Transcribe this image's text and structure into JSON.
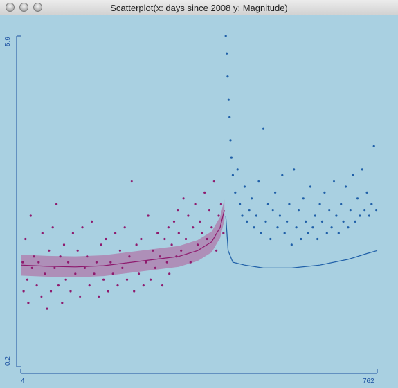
{
  "window": {
    "title": "Scatterplot(x: days since 2008 y: Magnitude)"
  },
  "chart_data": {
    "type": "scatter",
    "title": "Scatterplot(x: days since 2008 y: Magnitude)",
    "x_label": "days since 2008",
    "y_label": "Magnitude",
    "xlim": [
      4,
      762
    ],
    "ylim": [
      0.2,
      5.9
    ],
    "x_tick_labels": [
      "4",
      "762"
    ],
    "y_tick_labels": [
      "0.2",
      "5.9"
    ],
    "grid": false,
    "colors": {
      "background": "#a9d0e1",
      "axis": "#1a4fa0",
      "series_before": "#8e1a6e",
      "series_after": "#1f5fa8",
      "band_before": "#b07aaa"
    },
    "series": [
      {
        "points": [
          [
            8,
            2.0
          ],
          [
            10,
            1.5
          ],
          [
            14,
            2.4
          ],
          [
            18,
            1.7
          ],
          [
            20,
            1.3
          ],
          [
            25,
            2.8
          ],
          [
            28,
            1.9
          ],
          [
            32,
            2.1
          ],
          [
            38,
            1.6
          ],
          [
            42,
            2.0
          ],
          [
            48,
            1.4
          ],
          [
            50,
            2.5
          ],
          [
            55,
            1.8
          ],
          [
            60,
            1.2
          ],
          [
            64,
            2.2
          ],
          [
            68,
            1.5
          ],
          [
            72,
            2.6
          ],
          [
            76,
            1.9
          ],
          [
            80,
            3.0
          ],
          [
            84,
            1.6
          ],
          [
            88,
            2.1
          ],
          [
            92,
            1.3
          ],
          [
            96,
            2.3
          ],
          [
            100,
            1.7
          ],
          [
            105,
            2.0
          ],
          [
            110,
            1.5
          ],
          [
            115,
            2.5
          ],
          [
            120,
            1.8
          ],
          [
            125,
            2.2
          ],
          [
            130,
            1.4
          ],
          [
            135,
            2.6
          ],
          [
            140,
            1.9
          ],
          [
            145,
            2.1
          ],
          [
            150,
            1.6
          ],
          [
            155,
            2.7
          ],
          [
            160,
            1.8
          ],
          [
            165,
            2.0
          ],
          [
            170,
            1.4
          ],
          [
            175,
            2.3
          ],
          [
            180,
            1.7
          ],
          [
            185,
            2.4
          ],
          [
            190,
            1.5
          ],
          [
            195,
            2.0
          ],
          [
            200,
            1.8
          ],
          [
            205,
            2.5
          ],
          [
            210,
            1.6
          ],
          [
            215,
            2.2
          ],
          [
            220,
            1.9
          ],
          [
            225,
            2.6
          ],
          [
            230,
            1.7
          ],
          [
            235,
            2.1
          ],
          [
            240,
            3.4
          ],
          [
            245,
            1.5
          ],
          [
            250,
            2.3
          ],
          [
            255,
            1.8
          ],
          [
            260,
            2.4
          ],
          [
            265,
            1.6
          ],
          [
            270,
            2.0
          ],
          [
            275,
            2.8
          ],
          [
            280,
            1.7
          ],
          [
            285,
            2.2
          ],
          [
            290,
            1.9
          ],
          [
            295,
            2.5
          ],
          [
            300,
            2.1
          ],
          [
            305,
            1.6
          ],
          [
            310,
            2.4
          ],
          [
            315,
            2.0
          ],
          [
            318,
            2.6
          ],
          [
            320,
            1.8
          ],
          [
            325,
            2.3
          ],
          [
            330,
            2.7
          ],
          [
            335,
            2.1
          ],
          [
            338,
            2.9
          ],
          [
            340,
            2.5
          ],
          [
            345,
            2.2
          ],
          [
            350,
            3.1
          ],
          [
            355,
            2.4
          ],
          [
            360,
            2.8
          ],
          [
            365,
            2.0
          ],
          [
            370,
            2.6
          ],
          [
            375,
            3.0
          ],
          [
            380,
            2.3
          ],
          [
            385,
            2.7
          ],
          [
            390,
            2.5
          ],
          [
            395,
            3.2
          ],
          [
            400,
            2.4
          ],
          [
            405,
            2.9
          ],
          [
            410,
            2.6
          ],
          [
            415,
            3.4
          ],
          [
            420,
            2.2
          ],
          [
            425,
            2.8
          ],
          [
            430,
            3.0
          ],
          [
            435,
            2.5
          ]
        ],
        "smooth": [
          [
            4,
            1.95
          ],
          [
            60,
            1.93
          ],
          [
            120,
            1.92
          ],
          [
            180,
            1.94
          ],
          [
            240,
            2.0
          ],
          [
            290,
            2.05
          ],
          [
            340,
            2.1
          ],
          [
            380,
            2.2
          ],
          [
            410,
            2.35
          ],
          [
            428,
            2.6
          ],
          [
            437,
            2.9
          ]
        ],
        "band_halfwidth": 0.18
      },
      {
        "points": [
          [
            440,
            5.9
          ],
          [
            442,
            5.6
          ],
          [
            444,
            5.2
          ],
          [
            446,
            4.8
          ],
          [
            448,
            4.5
          ],
          [
            450,
            4.1
          ],
          [
            452,
            3.8
          ],
          [
            455,
            3.5
          ],
          [
            460,
            3.2
          ],
          [
            465,
            3.6
          ],
          [
            470,
            3.0
          ],
          [
            475,
            2.8
          ],
          [
            480,
            3.3
          ],
          [
            485,
            2.7
          ],
          [
            490,
            2.9
          ],
          [
            495,
            3.1
          ],
          [
            500,
            2.6
          ],
          [
            505,
            2.8
          ],
          [
            510,
            3.4
          ],
          [
            515,
            2.5
          ],
          [
            520,
            4.3
          ],
          [
            525,
            2.7
          ],
          [
            530,
            3.0
          ],
          [
            535,
            2.4
          ],
          [
            540,
            2.9
          ],
          [
            545,
            3.2
          ],
          [
            550,
            2.6
          ],
          [
            555,
            2.8
          ],
          [
            560,
            3.5
          ],
          [
            565,
            2.5
          ],
          [
            570,
            2.7
          ],
          [
            575,
            3.0
          ],
          [
            580,
            2.3
          ],
          [
            585,
            3.6
          ],
          [
            590,
            2.6
          ],
          [
            595,
            2.9
          ],
          [
            600,
            2.4
          ],
          [
            605,
            3.1
          ],
          [
            610,
            2.7
          ],
          [
            615,
            2.5
          ],
          [
            620,
            3.3
          ],
          [
            625,
            2.6
          ],
          [
            630,
            2.8
          ],
          [
            635,
            2.4
          ],
          [
            640,
            3.0
          ],
          [
            645,
            2.7
          ],
          [
            650,
            3.2
          ],
          [
            655,
            2.5
          ],
          [
            660,
            2.9
          ],
          [
            665,
            2.6
          ],
          [
            670,
            3.4
          ],
          [
            675,
            2.8
          ],
          [
            680,
            2.5
          ],
          [
            685,
            3.0
          ],
          [
            690,
            2.7
          ],
          [
            695,
            3.3
          ],
          [
            700,
            2.6
          ],
          [
            705,
            2.9
          ],
          [
            710,
            3.5
          ],
          [
            715,
            2.7
          ],
          [
            720,
            3.1
          ],
          [
            725,
            2.8
          ],
          [
            730,
            3.6
          ],
          [
            735,
            2.9
          ],
          [
            740,
            3.2
          ],
          [
            745,
            2.8
          ],
          [
            750,
            3.0
          ],
          [
            755,
            4.0
          ],
          [
            760,
            2.9
          ]
        ],
        "smooth": [
          [
            440,
            2.8
          ],
          [
            445,
            2.2
          ],
          [
            455,
            2.0
          ],
          [
            480,
            1.95
          ],
          [
            520,
            1.9
          ],
          [
            580,
            1.9
          ],
          [
            640,
            1.95
          ],
          [
            700,
            2.05
          ],
          [
            740,
            2.15
          ],
          [
            762,
            2.2
          ]
        ]
      }
    ]
  }
}
